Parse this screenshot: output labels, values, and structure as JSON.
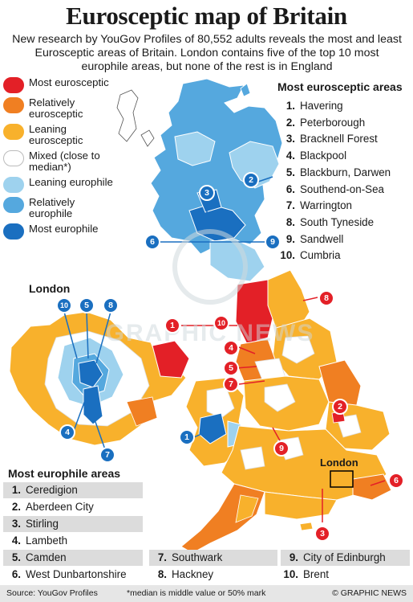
{
  "title": "Eurosceptic map of Britain",
  "subtitle": "New research by YouGov Profiles of 80,552 adults reveals the most and least Eurosceptic areas of Britain. London contains five of the top 10 most europhile areas, but none of the rest is in England",
  "colors": {
    "most_eurosceptic": "#e32027",
    "relatively_eurosceptic": "#f07f22",
    "leaning_eurosceptic": "#f8b12c",
    "mixed": "#ffffff",
    "leaning_europhile": "#9ed2ee",
    "relatively_europhile": "#55a8de",
    "most_europhile": "#1a6fc0"
  },
  "legend": [
    {
      "label": "Most eurosceptic",
      "color": "#e32027"
    },
    {
      "label": "Relatively eurosceptic",
      "color": "#f07f22"
    },
    {
      "label": "Leaning eurosceptic",
      "color": "#f8b12c"
    },
    {
      "label": "Mixed (close to median*)",
      "color": "#ffffff"
    },
    {
      "label": "Leaning europhile",
      "color": "#9ed2ee"
    },
    {
      "label": "Relatively europhile",
      "color": "#55a8de"
    },
    {
      "label": "Most europhile",
      "color": "#1a6fc0"
    }
  ],
  "most_eurosceptic": {
    "title": "Most eurosceptic areas",
    "items": [
      {
        "rank": "1.",
        "name": "Havering"
      },
      {
        "rank": "2.",
        "name": "Peterborough"
      },
      {
        "rank": "3.",
        "name": "Bracknell Forest"
      },
      {
        "rank": "4.",
        "name": "Blackpool"
      },
      {
        "rank": "5.",
        "name": "Blackburn, Darwen"
      },
      {
        "rank": "6.",
        "name": "Southend-on-Sea"
      },
      {
        "rank": "7.",
        "name": "Warrington"
      },
      {
        "rank": "8.",
        "name": "South Tyneside"
      },
      {
        "rank": "9.",
        "name": "Sandwell"
      },
      {
        "rank": "10.",
        "name": "Cumbria"
      }
    ]
  },
  "most_europhile": {
    "title": "Most europhile areas",
    "items": [
      {
        "rank": "1.",
        "name": "Ceredigion"
      },
      {
        "rank": "2.",
        "name": "Aberdeen City"
      },
      {
        "rank": "3.",
        "name": "Stirling"
      },
      {
        "rank": "4.",
        "name": "Lambeth"
      },
      {
        "rank": "5.",
        "name": "Camden"
      },
      {
        "rank": "6.",
        "name": "West Dunbartonshire"
      },
      {
        "rank": "7.",
        "name": "Southwark"
      },
      {
        "rank": "8.",
        "name": "Hackney"
      },
      {
        "rank": "9.",
        "name": "City of Edinburgh"
      },
      {
        "rank": "10.",
        "name": "Brent"
      }
    ]
  },
  "map_labels": {
    "london_inset": "London",
    "london_box": "London"
  },
  "markers": {
    "sceptic": [
      "1",
      "2",
      "3",
      "4",
      "5",
      "6",
      "7",
      "8",
      "9",
      "10",
      "1"
    ],
    "europhile": [
      "1",
      "2",
      "3",
      "4",
      "5",
      "6",
      "7",
      "8",
      "9",
      "10"
    ]
  },
  "watermark": "GN GRAPHIC NEWS",
  "footer": {
    "source": "Source: YouGov Profiles",
    "note": "*median is middle value or 50% mark",
    "credit": "© GRAPHIC NEWS"
  }
}
